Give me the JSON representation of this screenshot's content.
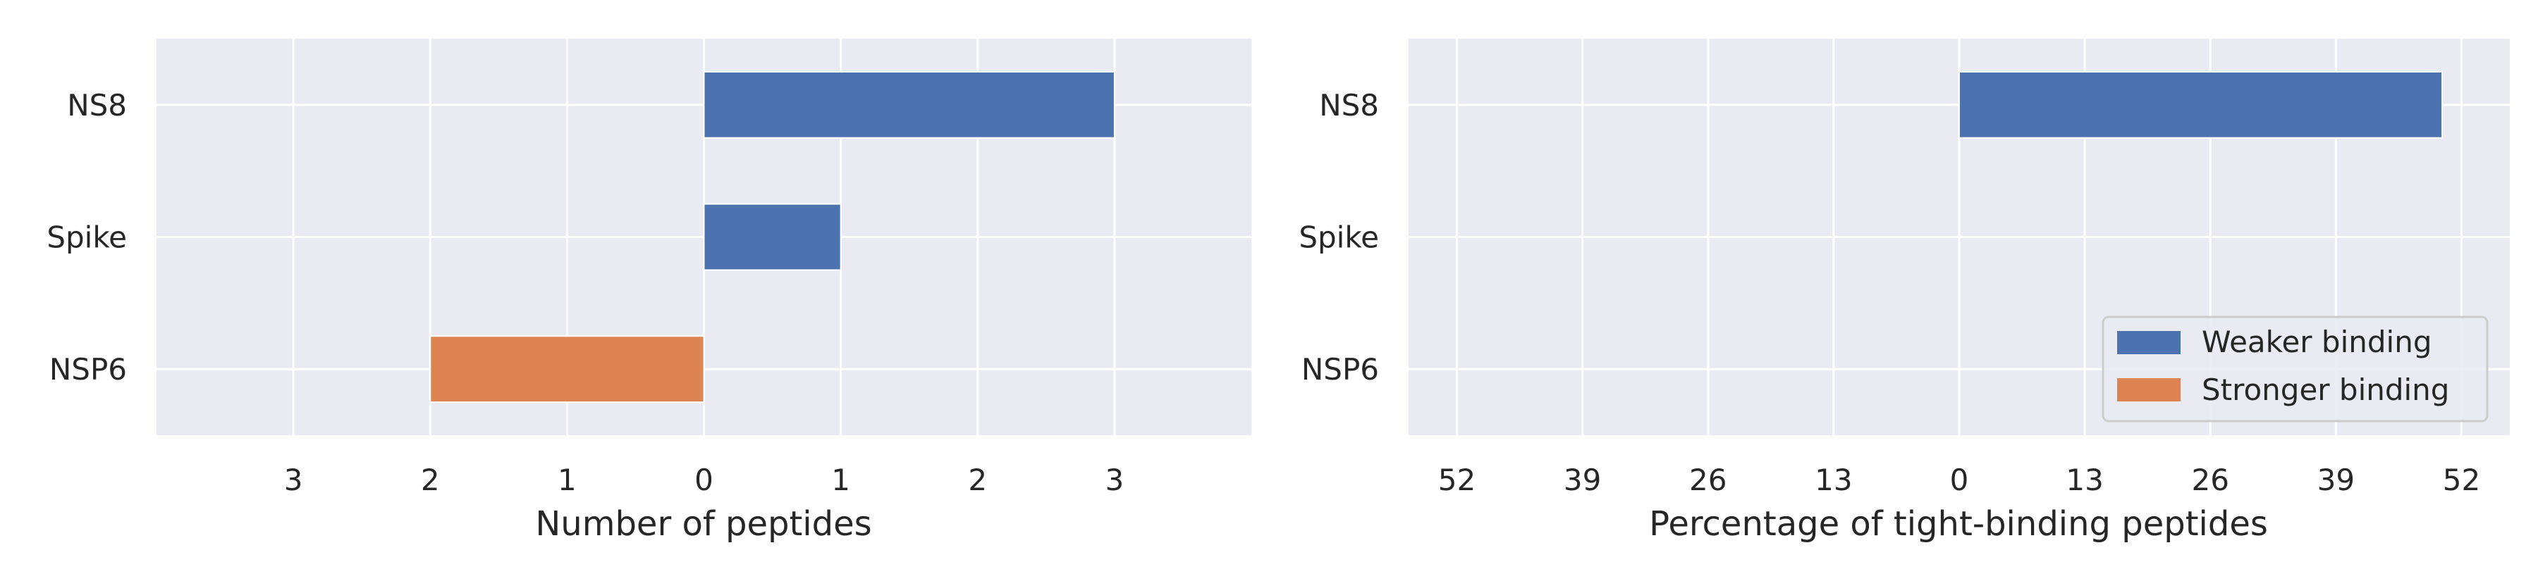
{
  "chart_data": [
    {
      "type": "bar",
      "orientation": "horizontal",
      "categories": [
        "NS8",
        "Spike",
        "NSP6"
      ],
      "series": [
        {
          "name": "Weaker binding",
          "color": "#4c72b0",
          "direction": "right",
          "values": [
            3,
            1,
            0
          ]
        },
        {
          "name": "Stronger binding",
          "color": "#dd8452",
          "direction": "left",
          "values": [
            0,
            0,
            2
          ]
        }
      ],
      "xlabel": "Number of peptides",
      "xlim": [
        -4,
        4
      ],
      "xticks": [
        -3,
        -2,
        -1,
        0,
        1,
        2,
        3
      ],
      "xtick_labels": [
        "3",
        "2",
        "1",
        "0",
        "1",
        "2",
        "3"
      ],
      "grid": true
    },
    {
      "type": "bar",
      "orientation": "horizontal",
      "categories": [
        "NS8",
        "Spike",
        "NSP6"
      ],
      "series": [
        {
          "name": "Weaker binding",
          "color": "#4c72b0",
          "direction": "right",
          "values": [
            50,
            0,
            0
          ]
        },
        {
          "name": "Stronger binding",
          "color": "#dd8452",
          "direction": "left",
          "values": [
            0,
            0,
            0
          ]
        }
      ],
      "xlabel": "Percentage of tight-binding peptides",
      "xlim": [
        -57,
        57
      ],
      "xticks": [
        -52,
        -39,
        -26,
        -13,
        0,
        13,
        26,
        39,
        52
      ],
      "xtick_labels": [
        "52",
        "39",
        "26",
        "13",
        "0",
        "13",
        "26",
        "39",
        "52"
      ],
      "grid": true,
      "legend": {
        "placement": "lower-right",
        "entries": [
          {
            "label": "Weaker binding",
            "color": "#4c72b0"
          },
          {
            "label": "Stronger binding",
            "color": "#dd8452"
          }
        ]
      }
    }
  ]
}
